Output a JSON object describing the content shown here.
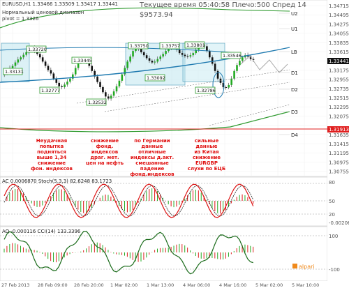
{
  "header": {
    "symbol_line": "EURUSD,H1  1.33466 1.33509 1.33417 1.33441",
    "pivot_note": "Нормальный ценовой диапазон",
    "pivot_value": "pivot = 1.3326",
    "server_time": "Текущее время 05:40:58 Плечо:500 Спред 14",
    "balance": "$9573.94"
  },
  "price_axis": {
    "labels": [
      "1.34715",
      "1.34495",
      "1.34275",
      "1.34055",
      "1.33835",
      "1.33615",
      "1.33441",
      "1.33175",
      "1.32955",
      "1.32735",
      "1.32515",
      "1.32295",
      "1.32075",
      "1.31913",
      "1.31635",
      "1.31415",
      "1.31195",
      "1.30975",
      "1.30755"
    ]
  },
  "current_price": "1.33441",
  "support_price": "1.31913",
  "levels": [
    "U2",
    "U1",
    "LB",
    "D1",
    "D2",
    "D3",
    "D4"
  ],
  "price_boxes": [
    "1.33131",
    "1.33720",
    "1.33445",
    "1.32777",
    "1.32532",
    "1.33750",
    "1.33757",
    "1.33801",
    "1.33092",
    "1.32786",
    "1.33546"
  ],
  "news": [
    "Неудачная попытка подняться выше 1,34 снижение фон. индексов",
    "снижение фонд. индексов драг. мет. цен на нефть",
    "по Германии данные отличные индексы д.акт. смешанные падение фонд.индексов",
    "сильные данные из Китая снижение EURGBP слухи по ЕЦБ"
  ],
  "news_lines": [
    [
      "Неудачная",
      "попытка",
      "подняться",
      "выше 1,34",
      "снижение",
      "фон. индексов"
    ],
    [
      "снижение",
      "фонд.",
      "индексов",
      "драг. мет.",
      "цен на нефть"
    ],
    [
      "по Германии",
      "данные",
      "отличные",
      "индексы д.акт.",
      "смешанные",
      "падение",
      "фонд.индексов"
    ],
    [
      "сильные",
      "данные",
      "из Китая",
      "снижение",
      "EURGBP",
      "слухи по ЕЦБ"
    ]
  ],
  "ind1": {
    "label": "AC 0.0006870  Stoch(5,3,3) 82.6248 83.1723",
    "axis": [
      "80",
      "50",
      "20",
      "0.00206"
    ],
    "axis_neg": "-0.00206"
  },
  "ind2": {
    "label": "AO -0.000116  CCI(14) 133.3396",
    "axis": [
      "100",
      "-100"
    ]
  },
  "time_axis": [
    "27 Feb 2013",
    "28 Feb 09:00",
    "28 Feb 20:00",
    "1 Mar 02:00",
    "1 Mar 13:00",
    "4 Mar 06:00",
    "4 Mar 16:00",
    "5 Mar 02:00",
    "5 Mar 10:00"
  ],
  "watermark": "alpari",
  "colors": {
    "bull": "#22aa22",
    "bear": "#111111",
    "news": "#e01010",
    "support": "#e02020",
    "trend": "#1f7ab0",
    "green_line": "#2e9a2e",
    "ma_line": "#66bb44",
    "stoch_main": "#dd1111",
    "cci": "#1a6b1a"
  },
  "chart_data": {
    "type": "candlestick",
    "symbol": "EURUSD",
    "timeframe": "H1",
    "ohlc_last": {
      "open": 1.33466,
      "high": 1.33509,
      "low": 1.33417,
      "close": 1.33441
    },
    "ylim": [
      1.3075,
      1.3475
    ],
    "close_series": [
      1.3313,
      1.3318,
      1.3325,
      1.333,
      1.3338,
      1.3345,
      1.335,
      1.3356,
      1.3362,
      1.3368,
      1.3372,
      1.3365,
      1.3358,
      1.335,
      1.334,
      1.333,
      1.332,
      1.3312,
      1.33,
      1.329,
      1.3282,
      1.328,
      1.3286,
      1.3293,
      1.33,
      1.331,
      1.3325,
      1.3338,
      1.3345,
      1.3344,
      1.3338,
      1.333,
      1.3318,
      1.3305,
      1.3292,
      1.328,
      1.3268,
      1.3258,
      1.3253,
      1.326,
      1.327,
      1.3282,
      1.3295,
      1.331,
      1.3325,
      1.334,
      1.3352,
      1.3365,
      1.3375,
      1.337,
      1.3362,
      1.3355,
      1.3348,
      1.3342,
      1.3338,
      1.334,
      1.3346,
      1.3352,
      1.3358,
      1.3365,
      1.3372,
      1.3378,
      1.3376,
      1.3368,
      1.336,
      1.3356,
      1.3353,
      1.3352,
      1.3355,
      1.336,
      1.3368,
      1.3375,
      1.338,
      1.3376,
      1.3365,
      1.335,
      1.3335,
      1.3318,
      1.33,
      1.329,
      1.328,
      1.3279,
      1.3285,
      1.33,
      1.3318,
      1.3332,
      1.3342,
      1.335,
      1.3355,
      1.3352,
      1.3346,
      1.3344
    ],
    "support_level": 1.31913,
    "current": 1.33441,
    "stochastic": {
      "main": 82.6248,
      "signal": 83.1723,
      "levels": [
        80,
        50,
        20
      ]
    },
    "ac": 0.000687,
    "ao": -0.000116,
    "cci": {
      "value": 133.3396,
      "levels": [
        100,
        -100
      ]
    }
  }
}
